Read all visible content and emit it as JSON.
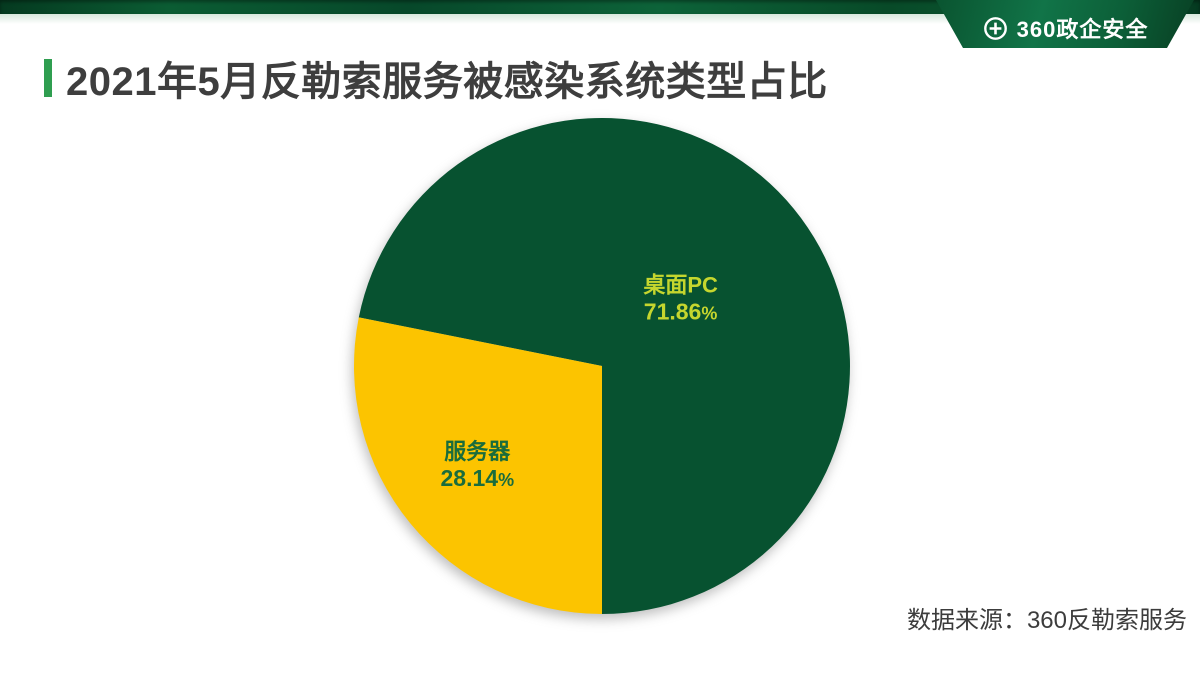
{
  "header": {
    "logo": {
      "text": "360政企安全",
      "icon": "plus-circle-icon"
    },
    "banner_color": "#0b5c33"
  },
  "title": {
    "text": "2021年5月反勒索服务被感染系统类型占比",
    "accent_color": "#2f9e50"
  },
  "source": {
    "text": "数据来源：360反勒索服务"
  },
  "chart_data": {
    "type": "pie",
    "title": "2021年5月反勒索服务被感染系统类型占比",
    "slices": [
      {
        "name": "桌面PC",
        "value": 71.86,
        "color": "#075230",
        "label_color": "#c5d62e",
        "label_r": 0.41
      },
      {
        "name": "服务器",
        "value": 28.14,
        "color": "#fcc400",
        "label_color": "#1a6c3c",
        "label_r": 0.65
      }
    ],
    "start_angle_deg": 180,
    "direction": "counterclockwise",
    "legend": "none",
    "label_format": "{name}\n{value}%"
  }
}
